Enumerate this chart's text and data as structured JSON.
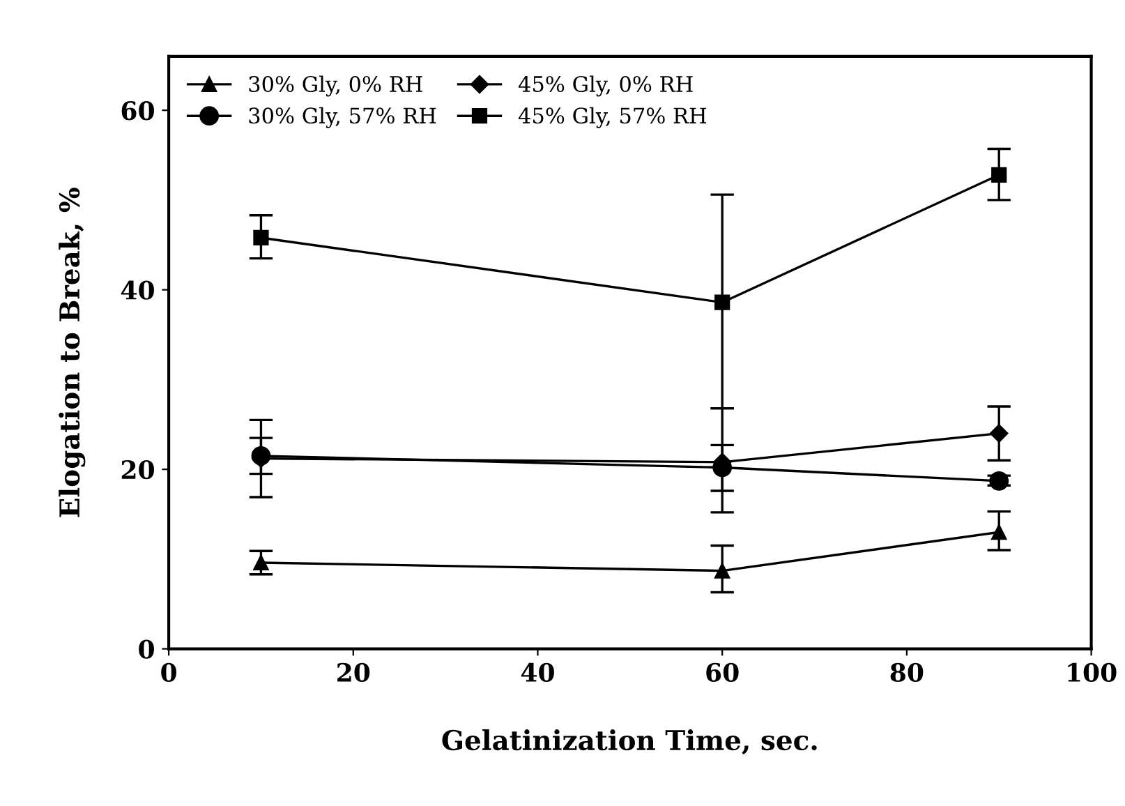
{
  "chart_data": {
    "type": "line",
    "xlabel": "Gelatinization Time, sec.",
    "ylabel": "Elogation to Break, %",
    "x": [
      10,
      60,
      90
    ],
    "xlim": [
      0,
      100
    ],
    "xticks": [
      0,
      20,
      40,
      60,
      80,
      100
    ],
    "ylim": [
      0,
      66
    ],
    "yticks": [
      0,
      20,
      40,
      60
    ],
    "grid": false,
    "legend": "top left",
    "line_style": "solid",
    "series": [
      {
        "name": "30% Gly, 0% RH",
        "color": "#000000",
        "marker": "triangle",
        "values": [
          9.6,
          8.7,
          13.0
        ],
        "errors": [
          [
            8.3,
            10.9
          ],
          [
            6.3,
            11.5
          ],
          [
            11.0,
            15.3
          ]
        ]
      },
      {
        "name": "30% Gly, 57% RH",
        "color": "#000000",
        "marker": "circle",
        "values": [
          21.5,
          20.2,
          18.7
        ],
        "errors": [
          [
            19.5,
            23.5
          ],
          [
            17.6,
            22.7
          ],
          [
            18.2,
            19.3
          ]
        ]
      },
      {
        "name": "45% Gly, 0% RH",
        "color": "#000000",
        "marker": "diamond",
        "values": [
          21.2,
          20.8,
          24.0
        ],
        "errors": [
          [
            16.9,
            25.5
          ],
          [
            15.2,
            26.8
          ],
          [
            21.0,
            27.0
          ]
        ]
      },
      {
        "name": "45% Gly, 57% RH",
        "color": "#000000",
        "marker": "square",
        "values": [
          45.8,
          38.6,
          52.8
        ],
        "errors": [
          [
            43.5,
            48.3
          ],
          [
            26.8,
            50.6
          ],
          [
            50.0,
            55.7
          ]
        ]
      }
    ]
  }
}
